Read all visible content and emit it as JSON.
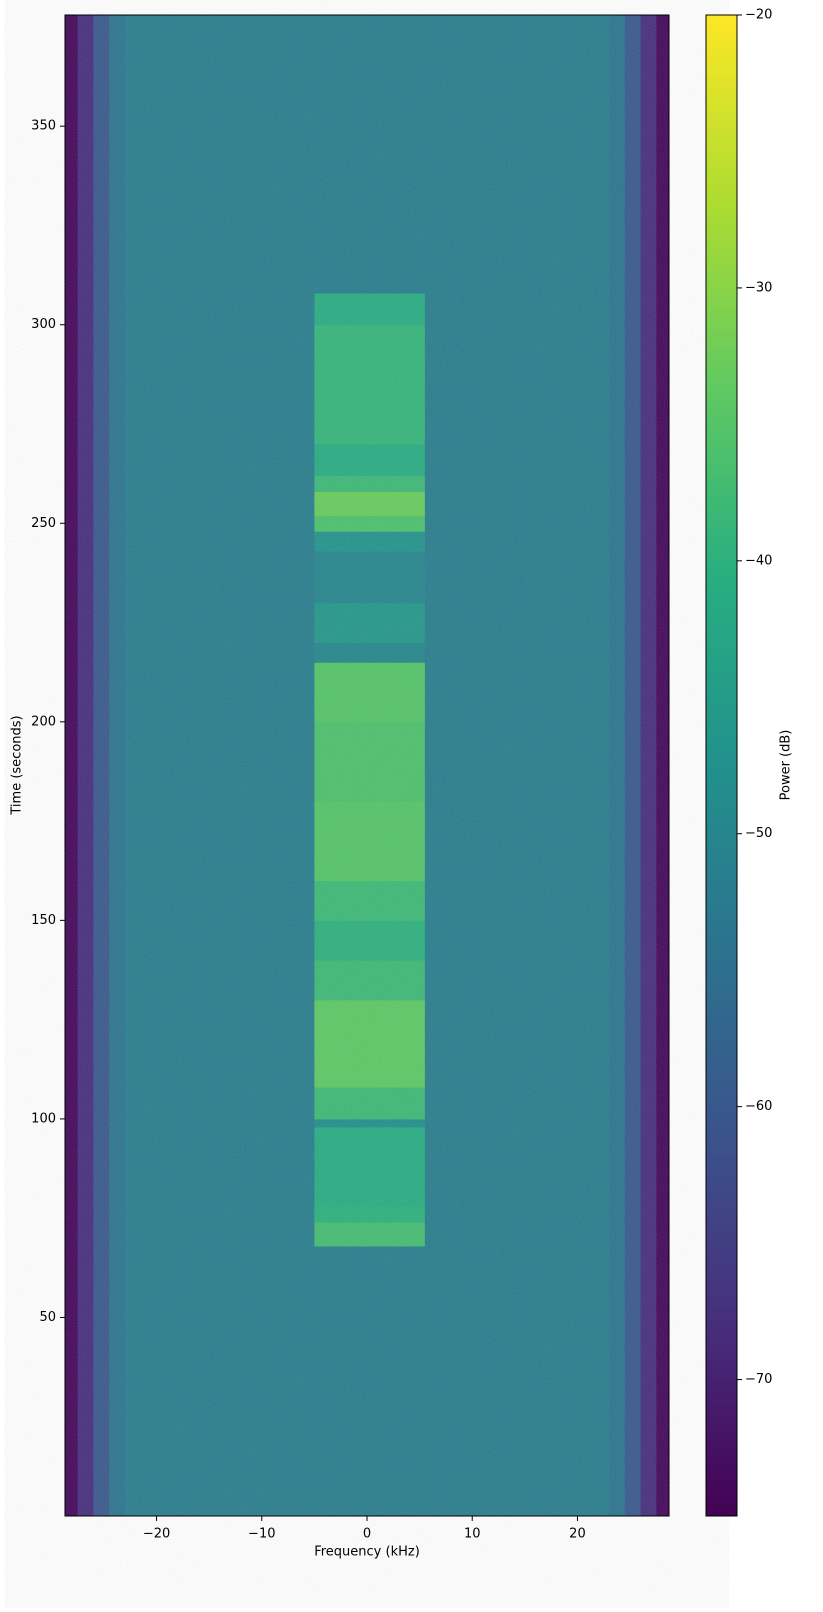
{
  "chart_data": {
    "type": "heatmap",
    "xlabel": "Frequency (kHz)",
    "ylabel": "Time (seconds)",
    "colorbar_label": "Power (dB)",
    "colormap": "viridis",
    "x_edges": [
      -28.7,
      -27.5,
      -26,
      -24.5,
      -23,
      -5,
      5.5,
      23,
      24.5,
      26,
      27.5,
      28.7
    ],
    "y_edges": [
      0,
      68,
      74,
      78,
      98,
      100,
      108,
      130,
      140,
      150,
      160,
      180,
      200,
      215,
      220,
      230,
      243,
      248,
      252,
      258,
      262,
      270,
      300,
      308,
      378
    ],
    "z": [
      [
        -74,
        -68,
        -60,
        -54,
        -52,
        -52,
        -52,
        -54,
        -60,
        -68,
        -74
      ],
      [
        -74,
        -68,
        -60,
        -54,
        -52,
        -37,
        -52,
        -54,
        -60,
        -68,
        -74
      ],
      [
        -74,
        -68,
        -60,
        -54,
        -52,
        -40,
        -52,
        -54,
        -60,
        -68,
        -74
      ],
      [
        -74,
        -68,
        -60,
        -54,
        -52,
        -41,
        -52,
        -54,
        -60,
        -68,
        -74
      ],
      [
        -74,
        -68,
        -60,
        -54,
        -52,
        -48,
        -52,
        -54,
        -60,
        -68,
        -74
      ],
      [
        -74,
        -68,
        -60,
        -54,
        -52,
        -38,
        -52,
        -54,
        -60,
        -68,
        -74
      ],
      [
        -74,
        -68,
        -60,
        -54,
        -52,
        -34,
        -52,
        -54,
        -60,
        -68,
        -74
      ],
      [
        -74,
        -68,
        -60,
        -54,
        -52,
        -38,
        -52,
        -54,
        -60,
        -68,
        -74
      ],
      [
        -74,
        -68,
        -60,
        -54,
        -52,
        -40,
        -52,
        -54,
        -60,
        -68,
        -74
      ],
      [
        -74,
        -68,
        -60,
        -54,
        -52,
        -38,
        -52,
        -54,
        -60,
        -68,
        -74
      ],
      [
        -74,
        -68,
        -60,
        -54,
        -52,
        -35,
        -52,
        -54,
        -60,
        -68,
        -74
      ],
      [
        -74,
        -68,
        -60,
        -54,
        -52,
        -36,
        -52,
        -54,
        -60,
        -68,
        -74
      ],
      [
        -74,
        -68,
        -60,
        -54,
        -52,
        -35,
        -52,
        -54,
        -60,
        -68,
        -74
      ],
      [
        -74,
        -68,
        -60,
        -54,
        -52,
        -50,
        -52,
        -54,
        -60,
        -68,
        -74
      ],
      [
        -74,
        -68,
        -60,
        -54,
        -52,
        -46,
        -52,
        -54,
        -60,
        -68,
        -74
      ],
      [
        -74,
        -68,
        -60,
        -54,
        -52,
        -50,
        -52,
        -54,
        -60,
        -68,
        -74
      ],
      [
        -74,
        -68,
        -60,
        -54,
        -52,
        -47,
        -52,
        -54,
        -60,
        -68,
        -74
      ],
      [
        -74,
        -68,
        -60,
        -54,
        -52,
        -36,
        -52,
        -54,
        -60,
        -68,
        -74
      ],
      [
        -74,
        -68,
        -60,
        -54,
        -52,
        -33,
        -52,
        -54,
        -60,
        -68,
        -74
      ],
      [
        -74,
        -68,
        -60,
        -54,
        -52,
        -38,
        -52,
        -54,
        -60,
        -68,
        -74
      ],
      [
        -74,
        -68,
        -60,
        -54,
        -52,
        -41,
        -52,
        -54,
        -60,
        -68,
        -74
      ],
      [
        -74,
        -68,
        -60,
        -54,
        -52,
        -39,
        -52,
        -54,
        -60,
        -68,
        -74
      ],
      [
        -74,
        -68,
        -60,
        -54,
        -52,
        -41,
        -52,
        -54,
        -60,
        -68,
        -74
      ],
      [
        -74,
        -68,
        -60,
        -54,
        -52,
        -52,
        -52,
        -54,
        -60,
        -68,
        -74
      ]
    ],
    "xlim": [
      -28.7,
      28.7
    ],
    "ylim": [
      0,
      378
    ],
    "clim": [
      -75,
      -20
    ],
    "xticks": [
      {
        "value": -20,
        "label": "−20"
      },
      {
        "value": -10,
        "label": "−10"
      },
      0,
      10,
      20
    ],
    "yticks": [
      50,
      100,
      150,
      200,
      250,
      300,
      350
    ],
    "cticks": [
      {
        "value": -20,
        "label": "−20"
      },
      {
        "value": -30,
        "label": "−30"
      },
      {
        "value": -40,
        "label": "−40"
      },
      {
        "value": -50,
        "label": "−50"
      },
      {
        "value": -60,
        "label": "−60"
      },
      {
        "value": -70,
        "label": "−70"
      }
    ]
  }
}
